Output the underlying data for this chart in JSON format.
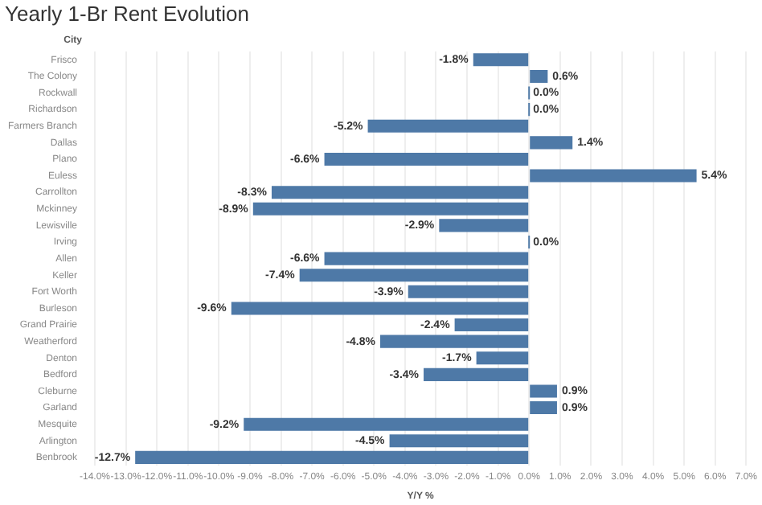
{
  "chart_data": {
    "type": "bar",
    "orientation": "horizontal",
    "title": "Yearly 1-Br Rent Evolution",
    "ylabel": "City",
    "xlabel": "Y/Y %",
    "categories": [
      "Frisco",
      "The Colony",
      "Rockwall",
      "Richardson",
      "Farmers Branch",
      "Dallas",
      "Plano",
      "Euless",
      "Carrollton",
      "Mckinney",
      "Lewisville",
      "Irving",
      "Allen",
      "Keller",
      "Fort Worth",
      "Burleson",
      "Grand Prairie",
      "Weatherford",
      "Denton",
      "Bedford",
      "Cleburne",
      "Garland",
      "Mesquite",
      "Arlington",
      "Benbrook"
    ],
    "values": [
      -1.8,
      0.6,
      0.0,
      0.0,
      -5.2,
      1.4,
      -6.6,
      5.4,
      -8.3,
      -8.9,
      -2.9,
      0.0,
      -6.6,
      -7.4,
      -3.9,
      -9.6,
      -2.4,
      -4.8,
      -1.7,
      -3.4,
      0.9,
      0.9,
      -9.2,
      -4.5,
      -12.7
    ],
    "value_labels": [
      "-1.8%",
      "0.6%",
      "0.0%",
      "0.0%",
      "-5.2%",
      "1.4%",
      "-6.6%",
      "5.4%",
      "-8.3%",
      "-8.9%",
      "-2.9%",
      "0.0%",
      "-6.6%",
      "-7.4%",
      "-3.9%",
      "-9.6%",
      "-2.4%",
      "-4.8%",
      "-1.7%",
      "-3.4%",
      "0.9%",
      "0.9%",
      "-9.2%",
      "-4.5%",
      "-12.7%"
    ],
    "color": "#4e79a7",
    "xlim": [
      -14,
      7
    ],
    "xticks": [
      {
        "value": -14,
        "label": "-14.0%"
      },
      {
        "value": -13,
        "label": "-13.0%"
      },
      {
        "value": -12,
        "label": "-12.0%"
      },
      {
        "value": -11,
        "label": "-11.0%"
      },
      {
        "value": -10,
        "label": "-10.0%"
      },
      {
        "value": -9,
        "label": "-9.0%"
      },
      {
        "value": -8,
        "label": "-8.0%"
      },
      {
        "value": -7,
        "label": "-7.0%"
      },
      {
        "value": -6,
        "label": "-6.0%"
      },
      {
        "value": -5,
        "label": "-5.0%"
      },
      {
        "value": -4,
        "label": "-4.0%"
      },
      {
        "value": -3,
        "label": "-3.0%"
      },
      {
        "value": -2,
        "label": "-2.0%"
      },
      {
        "value": -1,
        "label": "-1.0%"
      },
      {
        "value": 0,
        "label": "0.0%"
      },
      {
        "value": 1,
        "label": "1.0%"
      },
      {
        "value": 2,
        "label": "2.0%"
      },
      {
        "value": 3,
        "label": "3.0%"
      },
      {
        "value": 4,
        "label": "4.0%"
      },
      {
        "value": 5,
        "label": "5.0%"
      },
      {
        "value": 6,
        "label": "6.0%"
      },
      {
        "value": 7,
        "label": "7.0%"
      }
    ],
    "grid": "x"
  }
}
